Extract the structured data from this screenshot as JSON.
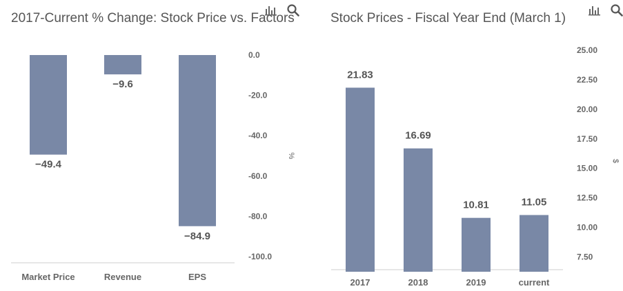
{
  "colors": {
    "bar": "#7988a6",
    "title": "#555555",
    "tick": "#666666",
    "data_label": "#555555",
    "axis": "#cccccc",
    "icon": "#666666"
  },
  "toolbar": {
    "chart_icon": "bar-chart-icon",
    "search_icon": "search-icon"
  },
  "chart_data": [
    {
      "type": "bar",
      "title": "2017-Current % Change: Stock Price vs. Factors",
      "categories": [
        "Market Price",
        "Revenue",
        "EPS"
      ],
      "values": [
        -49.4,
        -9.6,
        -84.9
      ],
      "value_labels": [
        "−49.4",
        "−9.6",
        "−84.9"
      ],
      "ylabel": "%",
      "y_axis_side": "right",
      "ylim": [
        -100,
        0
      ],
      "yticks": [
        0,
        -20,
        -40,
        -60,
        -80,
        -100
      ],
      "ytick_labels": [
        "0.0",
        "-20.0",
        "-40.0",
        "-60.0",
        "-80.0",
        "-100.0"
      ],
      "grid": false,
      "legend": "none"
    },
    {
      "type": "bar",
      "title": "Stock Prices - Fiscal Year End (March 1)",
      "categories": [
        "2017",
        "2018",
        "2019",
        "current"
      ],
      "values": [
        21.83,
        16.69,
        10.81,
        11.05
      ],
      "value_labels": [
        "21.83",
        "16.69",
        "10.81",
        "11.05"
      ],
      "ylabel": "$",
      "y_axis_side": "right",
      "ylim": [
        6.25,
        25
      ],
      "yticks": [
        7.5,
        10,
        12.5,
        15,
        17.5,
        20,
        22.5,
        25
      ],
      "ytick_labels": [
        "7.50",
        "10.00",
        "12.50",
        "15.00",
        "17.50",
        "20.00",
        "22.50",
        "25.00"
      ],
      "grid": false,
      "legend": "none"
    }
  ]
}
